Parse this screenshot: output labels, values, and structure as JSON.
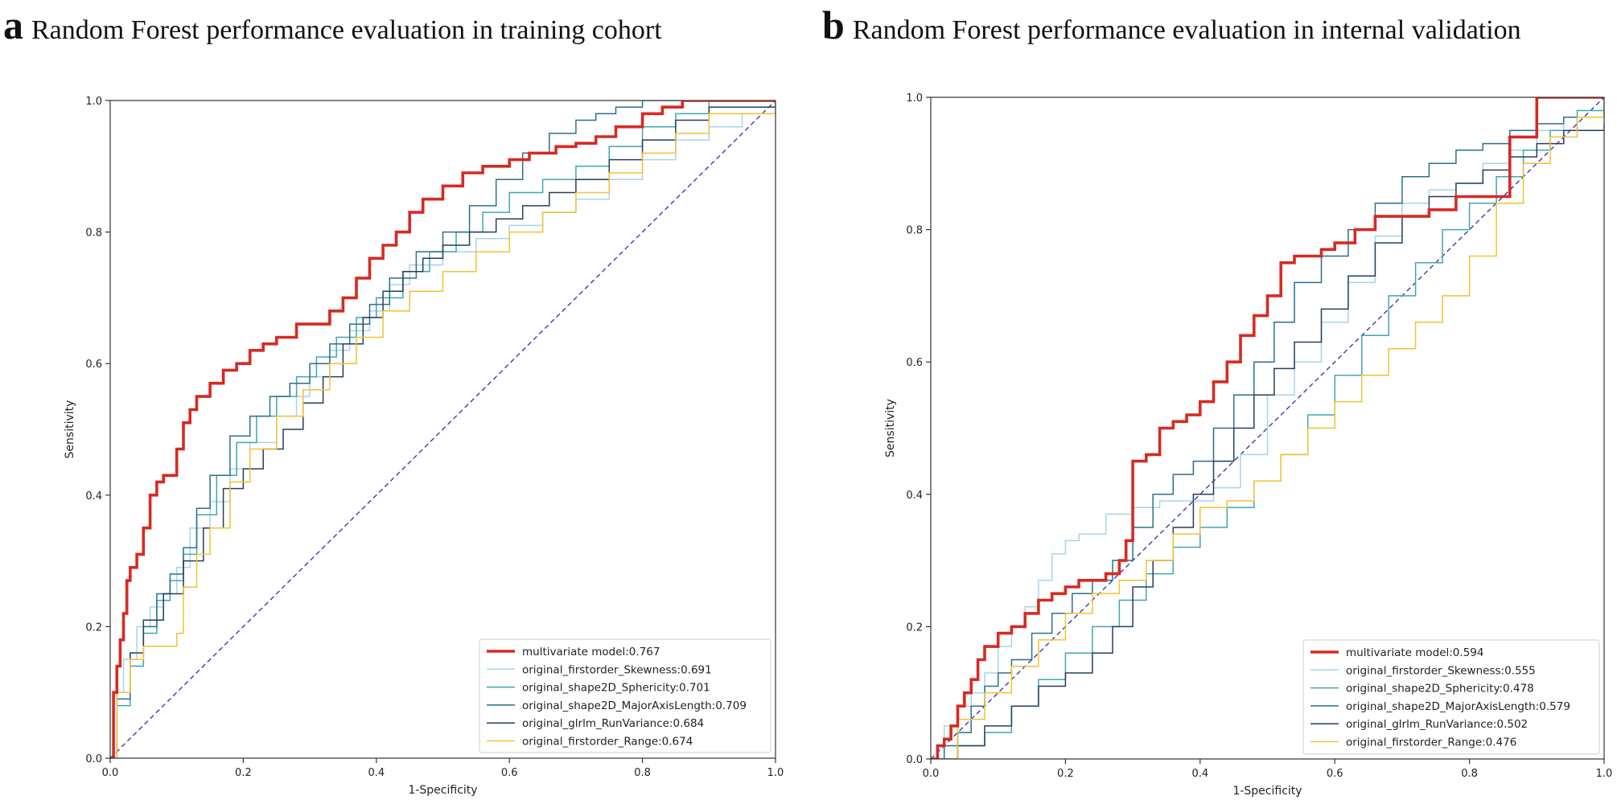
{
  "chart_data": [
    {
      "panel": "a",
      "title": "Random Forest performance evaluation in training cohort",
      "type": "line",
      "xlabel": "1-Specificity",
      "ylabel": "Sensitivity",
      "xlim": [
        0,
        1
      ],
      "ylim": [
        0,
        1
      ],
      "xticks": [
        "0.0",
        "0.2",
        "0.4",
        "0.6",
        "0.8",
        "1.0"
      ],
      "yticks": [
        "0.0",
        "0.2",
        "0.4",
        "0.6",
        "0.8",
        "1.0"
      ],
      "legend_position": "lower-right",
      "series": [
        {
          "name": "multivariate model:0.767",
          "color": "#d62a22",
          "width": 3.6,
          "step": true,
          "x": [
            0,
            0.005,
            0.01,
            0.015,
            0.02,
            0.025,
            0.03,
            0.04,
            0.05,
            0.06,
            0.07,
            0.08,
            0.1,
            0.11,
            0.12,
            0.13,
            0.15,
            0.17,
            0.19,
            0.21,
            0.23,
            0.25,
            0.28,
            0.3,
            0.33,
            0.35,
            0.37,
            0.39,
            0.41,
            0.43,
            0.45,
            0.47,
            0.5,
            0.53,
            0.56,
            0.6,
            0.63,
            0.67,
            0.7,
            0.73,
            0.76,
            0.8,
            0.83,
            0.86,
            0.9,
            1
          ],
          "y": [
            0,
            0.1,
            0.14,
            0.18,
            0.22,
            0.27,
            0.29,
            0.31,
            0.35,
            0.4,
            0.42,
            0.43,
            0.47,
            0.51,
            0.53,
            0.55,
            0.57,
            0.59,
            0.6,
            0.62,
            0.63,
            0.64,
            0.66,
            0.66,
            0.68,
            0.7,
            0.73,
            0.76,
            0.78,
            0.8,
            0.83,
            0.85,
            0.87,
            0.89,
            0.9,
            0.91,
            0.92,
            0.93,
            0.935,
            0.945,
            0.96,
            0.98,
            0.99,
            1,
            1,
            1
          ]
        },
        {
          "name": "original_firstorder_Skewness:0.691",
          "color": "#a8d4ea",
          "width": 1.5,
          "step": true,
          "x": [
            0,
            0.01,
            0.02,
            0.04,
            0.06,
            0.08,
            0.1,
            0.12,
            0.15,
            0.18,
            0.21,
            0.25,
            0.28,
            0.3,
            0.33,
            0.36,
            0.39,
            0.42,
            0.45,
            0.5,
            0.55,
            0.6,
            0.65,
            0.7,
            0.75,
            0.8,
            0.85,
            0.9,
            0.95,
            1
          ],
          "y": [
            0,
            0.1,
            0.15,
            0.2,
            0.23,
            0.25,
            0.29,
            0.35,
            0.39,
            0.44,
            0.48,
            0.52,
            0.55,
            0.58,
            0.62,
            0.65,
            0.68,
            0.72,
            0.75,
            0.77,
            0.79,
            0.81,
            0.83,
            0.85,
            0.88,
            0.91,
            0.94,
            0.96,
            0.98,
            1
          ]
        },
        {
          "name": "original_shape2D_Sphericity:0.701",
          "color": "#3fa6b2",
          "width": 1.5,
          "step": true,
          "x": [
            0,
            0.01,
            0.03,
            0.05,
            0.07,
            0.09,
            0.11,
            0.13,
            0.16,
            0.19,
            0.22,
            0.25,
            0.28,
            0.31,
            0.34,
            0.37,
            0.4,
            0.44,
            0.48,
            0.52,
            0.56,
            0.6,
            0.65,
            0.7,
            0.75,
            0.8,
            0.85,
            0.9,
            1
          ],
          "y": [
            0,
            0.08,
            0.14,
            0.19,
            0.24,
            0.27,
            0.31,
            0.37,
            0.43,
            0.48,
            0.52,
            0.55,
            0.58,
            0.61,
            0.64,
            0.67,
            0.7,
            0.74,
            0.77,
            0.8,
            0.83,
            0.86,
            0.88,
            0.9,
            0.93,
            0.96,
            0.98,
            1,
            1
          ]
        },
        {
          "name": "original_shape2D_MajorAxisLength:0.709",
          "color": "#2b6f8e",
          "width": 1.5,
          "step": true,
          "x": [
            0,
            0.01,
            0.03,
            0.05,
            0.07,
            0.09,
            0.11,
            0.13,
            0.15,
            0.18,
            0.21,
            0.24,
            0.27,
            0.3,
            0.33,
            0.36,
            0.39,
            0.42,
            0.46,
            0.5,
            0.54,
            0.58,
            0.62,
            0.66,
            0.7,
            0.73,
            0.76,
            0.8,
            0.84,
            0.88,
            1
          ],
          "y": [
            0,
            0.09,
            0.15,
            0.2,
            0.25,
            0.28,
            0.32,
            0.38,
            0.43,
            0.49,
            0.52,
            0.55,
            0.57,
            0.6,
            0.63,
            0.66,
            0.69,
            0.73,
            0.77,
            0.8,
            0.84,
            0.88,
            0.92,
            0.95,
            0.97,
            0.98,
            0.99,
            1,
            1,
            1,
            1
          ]
        },
        {
          "name": "original_glrlm_RunVariance:0.684",
          "color": "#263e5e",
          "width": 1.5,
          "step": true,
          "x": [
            0,
            0.01,
            0.03,
            0.05,
            0.08,
            0.11,
            0.14,
            0.17,
            0.2,
            0.23,
            0.26,
            0.29,
            0.32,
            0.35,
            0.38,
            0.41,
            0.44,
            0.47,
            0.5,
            0.54,
            0.58,
            0.62,
            0.66,
            0.7,
            0.75,
            0.8,
            0.85,
            0.9,
            1
          ],
          "y": [
            0,
            0.1,
            0.16,
            0.21,
            0.25,
            0.3,
            0.35,
            0.41,
            0.44,
            0.47,
            0.5,
            0.54,
            0.58,
            0.63,
            0.67,
            0.71,
            0.74,
            0.76,
            0.78,
            0.8,
            0.82,
            0.84,
            0.86,
            0.88,
            0.91,
            0.94,
            0.97,
            0.99,
            1
          ]
        },
        {
          "name": "original_firstorder_Range:0.674",
          "color": "#f2c232",
          "width": 1.5,
          "step": true,
          "x": [
            0,
            0.01,
            0.03,
            0.05,
            0.07,
            0.1,
            0.11,
            0.13,
            0.15,
            0.18,
            0.21,
            0.25,
            0.29,
            0.33,
            0.37,
            0.41,
            0.45,
            0.5,
            0.55,
            0.6,
            0.65,
            0.7,
            0.75,
            0.8,
            0.85,
            0.9,
            1
          ],
          "y": [
            0,
            0.1,
            0.15,
            0.17,
            0.17,
            0.19,
            0.26,
            0.31,
            0.35,
            0.42,
            0.47,
            0.52,
            0.56,
            0.6,
            0.64,
            0.68,
            0.71,
            0.74,
            0.77,
            0.8,
            0.83,
            0.86,
            0.89,
            0.92,
            0.95,
            0.98,
            1
          ]
        },
        {
          "name": "",
          "color": "#3e3aa8",
          "width": 1.4,
          "dash": "6,4",
          "step": false,
          "legend": false,
          "x": [
            0,
            1
          ],
          "y": [
            0,
            1
          ]
        }
      ]
    },
    {
      "panel": "b",
      "title": "Random Forest performance evaluation in internal validation",
      "type": "line",
      "xlabel": "1-Specificity",
      "ylabel": "Sensitivity",
      "xlim": [
        0,
        1
      ],
      "ylim": [
        0,
        1
      ],
      "xticks": [
        "0.0",
        "0.2",
        "0.4",
        "0.6",
        "0.8",
        "1.0"
      ],
      "yticks": [
        "0.0",
        "0.2",
        "0.4",
        "0.6",
        "0.8",
        "1.0"
      ],
      "legend_position": "lower-right",
      "series": [
        {
          "name": "multivariate model:0.594",
          "color": "#d62a22",
          "width": 3.6,
          "step": true,
          "x": [
            0,
            0.01,
            0.02,
            0.03,
            0.04,
            0.05,
            0.06,
            0.07,
            0.08,
            0.1,
            0.12,
            0.14,
            0.16,
            0.18,
            0.2,
            0.22,
            0.24,
            0.26,
            0.28,
            0.29,
            0.3,
            0.32,
            0.34,
            0.36,
            0.38,
            0.4,
            0.42,
            0.44,
            0.46,
            0.48,
            0.5,
            0.52,
            0.54,
            0.56,
            0.58,
            0.6,
            0.63,
            0.66,
            0.7,
            0.74,
            0.78,
            0.82,
            0.86,
            0.9,
            1
          ],
          "y": [
            0,
            0.02,
            0.03,
            0.05,
            0.08,
            0.1,
            0.12,
            0.15,
            0.17,
            0.19,
            0.2,
            0.22,
            0.24,
            0.25,
            0.26,
            0.27,
            0.27,
            0.28,
            0.3,
            0.33,
            0.45,
            0.46,
            0.5,
            0.51,
            0.52,
            0.54,
            0.57,
            0.6,
            0.64,
            0.67,
            0.7,
            0.75,
            0.76,
            0.76,
            0.77,
            0.78,
            0.8,
            0.82,
            0.82,
            0.83,
            0.85,
            0.85,
            0.94,
            1,
            1
          ]
        },
        {
          "name": "original_firstorder_Skewness:0.555",
          "color": "#a8d4ea",
          "width": 1.5,
          "step": true,
          "x": [
            0,
            0.02,
            0.04,
            0.06,
            0.08,
            0.1,
            0.12,
            0.14,
            0.16,
            0.18,
            0.2,
            0.22,
            0.26,
            0.3,
            0.34,
            0.38,
            0.42,
            0.46,
            0.5,
            0.54,
            0.58,
            0.62,
            0.66,
            0.7,
            0.74,
            0.78,
            0.82,
            0.86,
            0.9,
            0.94,
            1
          ],
          "y": [
            0,
            0.05,
            0.08,
            0.1,
            0.13,
            0.17,
            0.2,
            0.23,
            0.27,
            0.31,
            0.33,
            0.34,
            0.37,
            0.38,
            0.39,
            0.39,
            0.41,
            0.46,
            0.55,
            0.6,
            0.66,
            0.72,
            0.79,
            0.84,
            0.86,
            0.87,
            0.9,
            0.92,
            0.95,
            0.97,
            0.98
          ]
        },
        {
          "name": "original_shape2D_Sphericity:0.478",
          "color": "#3fa6b2",
          "width": 1.5,
          "step": true,
          "x": [
            0,
            0.04,
            0.08,
            0.12,
            0.16,
            0.2,
            0.24,
            0.28,
            0.32,
            0.36,
            0.4,
            0.44,
            0.48,
            0.52,
            0.56,
            0.6,
            0.64,
            0.68,
            0.72,
            0.76,
            0.8,
            0.84,
            0.88,
            0.92,
            0.96,
            1
          ],
          "y": [
            0,
            0.02,
            0.04,
            0.08,
            0.12,
            0.16,
            0.2,
            0.24,
            0.28,
            0.32,
            0.35,
            0.38,
            0.42,
            0.46,
            0.52,
            0.58,
            0.64,
            0.7,
            0.75,
            0.8,
            0.84,
            0.88,
            0.92,
            0.95,
            0.98,
            1
          ]
        },
        {
          "name": "original_shape2D_MajorAxisLength:0.579",
          "color": "#2b6f8e",
          "width": 1.5,
          "step": true,
          "x": [
            0,
            0.02,
            0.04,
            0.06,
            0.08,
            0.1,
            0.12,
            0.15,
            0.18,
            0.21,
            0.24,
            0.27,
            0.3,
            0.33,
            0.36,
            0.39,
            0.42,
            0.45,
            0.48,
            0.51,
            0.54,
            0.58,
            0.62,
            0.66,
            0.7,
            0.74,
            0.78,
            0.82,
            0.86,
            0.9,
            0.94,
            1
          ],
          "y": [
            0,
            0.02,
            0.04,
            0.08,
            0.11,
            0.13,
            0.15,
            0.19,
            0.22,
            0.25,
            0.27,
            0.3,
            0.35,
            0.4,
            0.43,
            0.45,
            0.5,
            0.55,
            0.6,
            0.66,
            0.72,
            0.76,
            0.8,
            0.84,
            0.88,
            0.9,
            0.92,
            0.93,
            0.95,
            0.96,
            0.97,
            0.98
          ]
        },
        {
          "name": "original_glrlm_RunVariance:0.502",
          "color": "#263e5e",
          "width": 1.5,
          "step": true,
          "x": [
            0,
            0.04,
            0.08,
            0.12,
            0.16,
            0.2,
            0.24,
            0.27,
            0.3,
            0.33,
            0.36,
            0.39,
            0.42,
            0.45,
            0.48,
            0.51,
            0.54,
            0.58,
            0.62,
            0.66,
            0.7,
            0.74,
            0.78,
            0.82,
            0.86,
            0.9,
            0.94,
            1
          ],
          "y": [
            0,
            0.02,
            0.05,
            0.08,
            0.11,
            0.13,
            0.16,
            0.2,
            0.26,
            0.3,
            0.35,
            0.4,
            0.45,
            0.5,
            0.55,
            0.59,
            0.63,
            0.68,
            0.73,
            0.78,
            0.82,
            0.85,
            0.87,
            0.89,
            0.91,
            0.93,
            0.95,
            0.96
          ]
        },
        {
          "name": "original_firstorder_Range:0.476",
          "color": "#f2c232",
          "width": 1.5,
          "step": true,
          "x": [
            0,
            0.04,
            0.08,
            0.12,
            0.16,
            0.2,
            0.24,
            0.28,
            0.32,
            0.36,
            0.4,
            0.44,
            0.48,
            0.52,
            0.56,
            0.6,
            0.64,
            0.68,
            0.72,
            0.76,
            0.8,
            0.84,
            0.88,
            0.92,
            0.96,
            1
          ],
          "y": [
            0,
            0.06,
            0.1,
            0.14,
            0.18,
            0.22,
            0.25,
            0.27,
            0.3,
            0.34,
            0.38,
            0.39,
            0.42,
            0.46,
            0.5,
            0.54,
            0.58,
            0.62,
            0.66,
            0.7,
            0.76,
            0.84,
            0.9,
            0.94,
            0.97,
            1
          ]
        },
        {
          "name": "",
          "color": "#3e3aa8",
          "width": 1.4,
          "dash": "6,4",
          "step": false,
          "legend": false,
          "x": [
            0,
            1
          ],
          "y": [
            0,
            1
          ]
        }
      ]
    }
  ]
}
